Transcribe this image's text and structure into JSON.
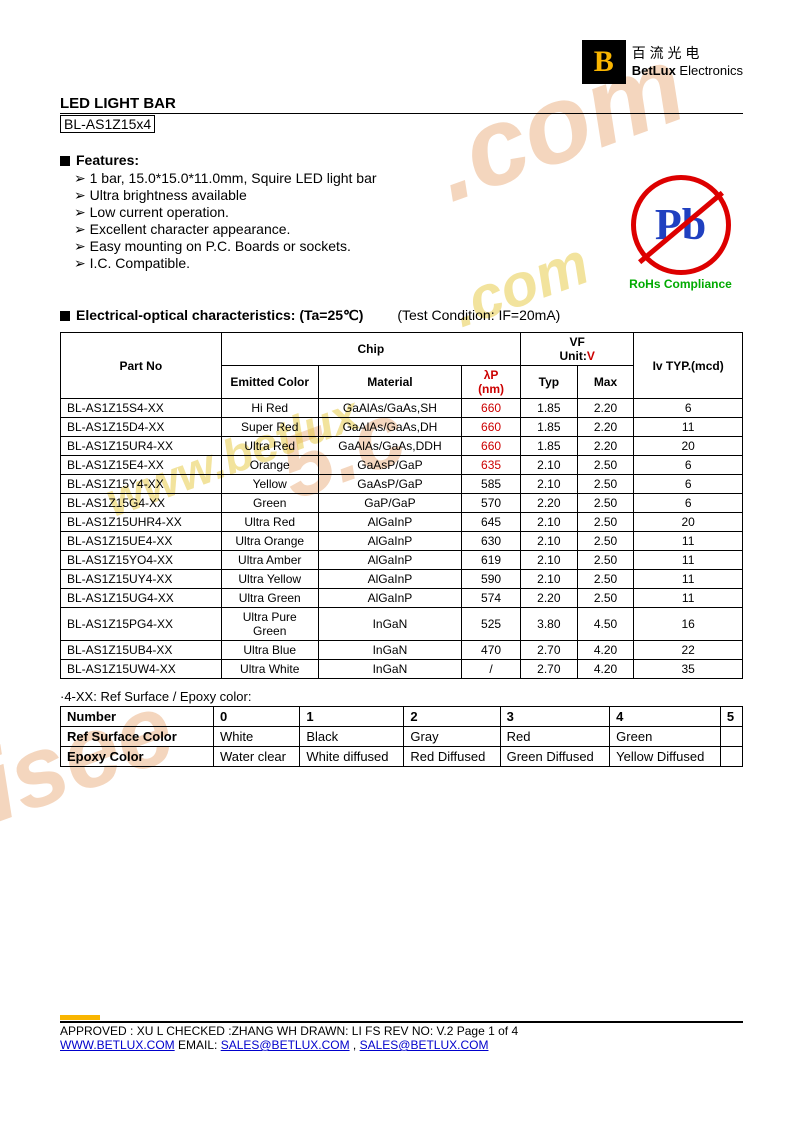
{
  "logo": {
    "cn": "百 流 光 电",
    "en_bold": "BetLux",
    "en_rest": " Electronics"
  },
  "title": {
    "line1": "LED LIGHT BAR",
    "line2": "BL-AS1Z15x4"
  },
  "features_heading": "Features:",
  "features": [
    "1 bar, 15.0*15.0*11.0mm, Squire LED light bar",
    "Ultra brightness available",
    "Low current operation.",
    "Excellent character appearance.",
    "Easy mounting on P.C. Boards or sockets.",
    "I.C. Compatible."
  ],
  "rohs": {
    "symbol": "Pb",
    "text": "RoHs Compliance"
  },
  "elec_heading": "Electrical-optical characteristics: (Ta=25℃)",
  "test_condition": "(Test Condition: IF=20mA)",
  "spec_headers": {
    "partno": "Part No",
    "chip": "Chip",
    "emitted": "Emitted Color",
    "material": "Material",
    "lambda": "λP",
    "lambda_unit": "(nm)",
    "vf": "VF",
    "vf_unit": "Unit:",
    "vf_v": "V",
    "typ": "Typ",
    "max": "Max",
    "iv": "Iv TYP.(mcd)"
  },
  "spec_rows": [
    {
      "part": "BL-AS1Z15S4-XX",
      "color": "Hi Red",
      "mat": "GaAlAs/GaAs,SH",
      "lp": "660",
      "typ": "1.85",
      "max": "2.20",
      "iv": "6",
      "red": true
    },
    {
      "part": "BL-AS1Z15D4-XX",
      "color": "Super Red",
      "mat": "GaAlAs/GaAs,DH",
      "lp": "660",
      "typ": "1.85",
      "max": "2.20",
      "iv": "11",
      "red": true
    },
    {
      "part": "BL-AS1Z15UR4-XX",
      "color": "Ultra Red",
      "mat": "GaAlAs/GaAs,DDH",
      "lp": "660",
      "typ": "1.85",
      "max": "2.20",
      "iv": "20",
      "red": true
    },
    {
      "part": "BL-AS1Z15E4-XX",
      "color": "Orange",
      "mat": "GaAsP/GaP",
      "lp": "635",
      "typ": "2.10",
      "max": "2.50",
      "iv": "6",
      "red": true
    },
    {
      "part": "BL-AS1Z15Y4-XX",
      "color": "Yellow",
      "mat": "GaAsP/GaP",
      "lp": "585",
      "typ": "2.10",
      "max": "2.50",
      "iv": "6"
    },
    {
      "part": "BL-AS1Z15G4-XX",
      "color": "Green",
      "mat": "GaP/GaP",
      "lp": "570",
      "typ": "2.20",
      "max": "2.50",
      "iv": "6"
    },
    {
      "part": "BL-AS1Z15UHR4-XX",
      "color": "Ultra Red",
      "mat": "AlGaInP",
      "lp": "645",
      "typ": "2.10",
      "max": "2.50",
      "iv": "20"
    },
    {
      "part": "BL-AS1Z15UE4-XX",
      "color": "Ultra Orange",
      "mat": "AlGaInP",
      "lp": "630",
      "typ": "2.10",
      "max": "2.50",
      "iv": "11"
    },
    {
      "part": "BL-AS1Z15YO4-XX",
      "color": "Ultra Amber",
      "mat": "AlGaInP",
      "lp": "619",
      "typ": "2.10",
      "max": "2.50",
      "iv": "11"
    },
    {
      "part": "BL-AS1Z15UY4-XX",
      "color": "Ultra Yellow",
      "mat": "AlGaInP",
      "lp": "590",
      "typ": "2.10",
      "max": "2.50",
      "iv": "11"
    },
    {
      "part": "BL-AS1Z15UG4-XX",
      "color": "Ultra Green",
      "mat": "AlGaInP",
      "lp": "574",
      "typ": "2.20",
      "max": "2.50",
      "iv": "11"
    },
    {
      "part": "BL-AS1Z15PG4-XX",
      "color": "Ultra Pure Green",
      "mat": "InGaN",
      "lp": "525",
      "typ": "3.80",
      "max": "4.50",
      "iv": "16"
    },
    {
      "part": "BL-AS1Z15UB4-XX",
      "color": "Ultra Blue",
      "mat": "InGaN",
      "lp": "470",
      "typ": "2.70",
      "max": "4.20",
      "iv": "22"
    },
    {
      "part": "BL-AS1Z15UW4-XX",
      "color": "Ultra White",
      "mat": "InGaN",
      "lp": "/",
      "typ": "2.70",
      "max": "4.20",
      "iv": "35"
    }
  ],
  "epoxy_note": "·4-XX: Ref Surface / Epoxy color:",
  "epoxy": {
    "headers": [
      "Number",
      "0",
      "1",
      "2",
      "3",
      "4",
      "5"
    ],
    "rows": [
      {
        "label": "Ref Surface Color",
        "cells": [
          "White",
          "Black",
          "Gray",
          "Red",
          "Green",
          ""
        ]
      },
      {
        "label": "Epoxy Color",
        "cells": [
          "Water clear",
          "White diffused",
          "Red Diffused",
          "Green Diffused",
          "Yellow Diffused",
          ""
        ]
      }
    ]
  },
  "footer": {
    "approved": "APPROVED : XU L    CHECKED :ZHANG WH    DRAWN: LI FS       REV NO: V.2       Page 1 of 4",
    "www": "WWW.BETLUX.COM",
    "email_label": "     EMAIL: ",
    "email1": "SALES@BETLUX.COM",
    "sep": " , ",
    "email2": "SALES@BETLUX.COM"
  },
  "watermarks": {
    "a": ".com",
    "b": "5.c",
    "c": "isee",
    "d": "www.betlux",
    "e": ".com"
  }
}
